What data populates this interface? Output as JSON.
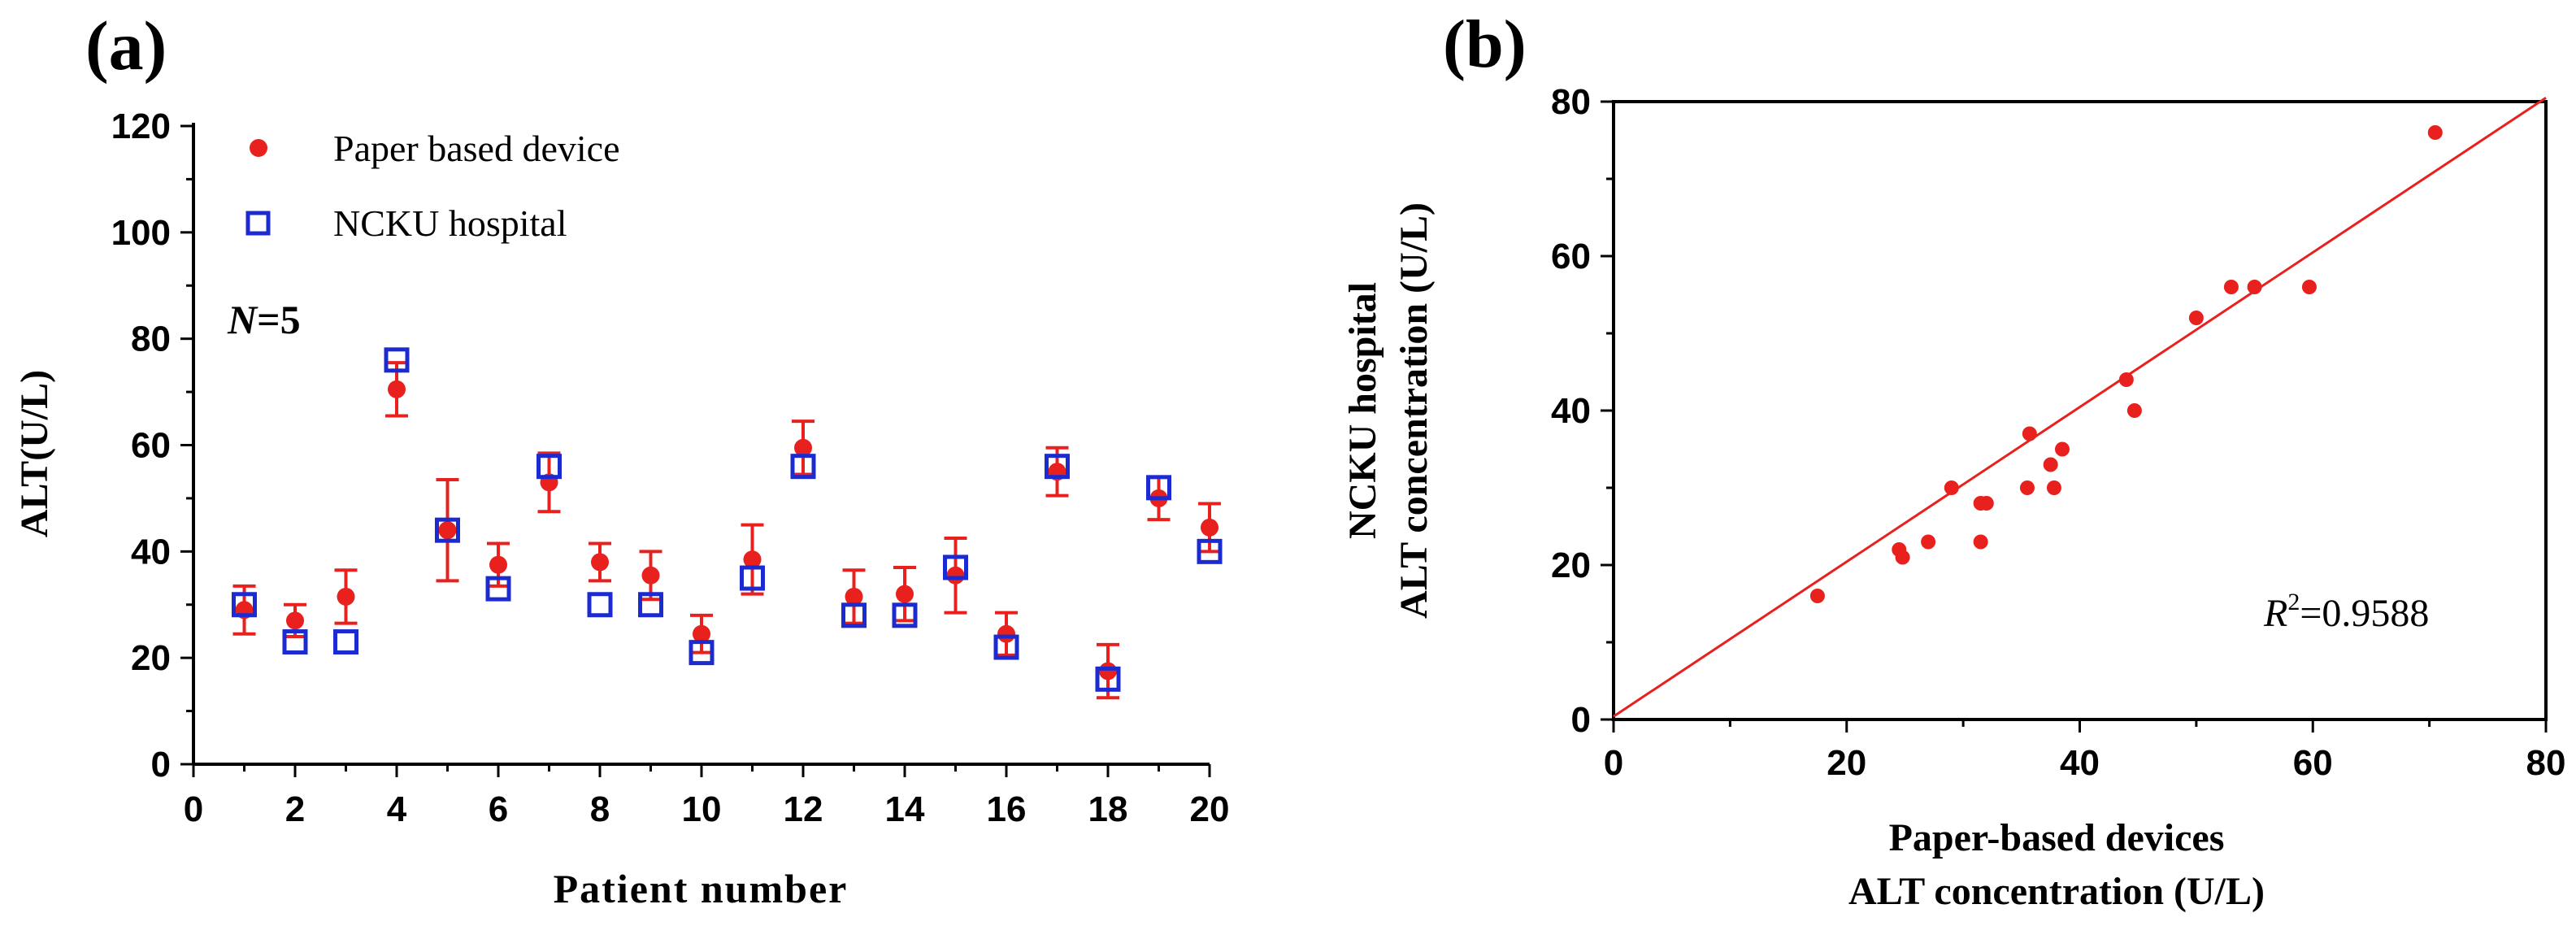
{
  "chart_data": [
    {
      "panel_label": "(a)",
      "type": "scatter",
      "xlabel": "Patient number",
      "ylabel": "ALT(U/L)",
      "xlim": [
        0,
        20
      ],
      "ylim": [
        0,
        120
      ],
      "xticks": [
        0,
        2,
        4,
        6,
        8,
        10,
        12,
        14,
        16,
        18,
        20
      ],
      "yticks": [
        0,
        20,
        40,
        60,
        80,
        100,
        120
      ],
      "grid": false,
      "legend_position": "top-left",
      "annotation": {
        "italic": "N",
        "text": "=5"
      },
      "x": [
        1,
        2,
        3,
        4,
        5,
        6,
        7,
        8,
        9,
        10,
        11,
        12,
        13,
        14,
        15,
        16,
        17,
        18,
        19,
        20
      ],
      "series": [
        {
          "name": "Paper based device",
          "marker": "filled-circle",
          "color": "#e8201e",
          "values": [
            29,
            27,
            31.5,
            70.5,
            44,
            37.5,
            53,
            38,
            35.5,
            24.5,
            38.5,
            59.5,
            31.5,
            32,
            35.5,
            24.5,
            55,
            17.5,
            50,
            44.5
          ],
          "errors": [
            4.5,
            3,
            5,
            5,
            9.5,
            4,
            5.5,
            3.5,
            4.5,
            3.5,
            6.5,
            5,
            5,
            5,
            7,
            4,
            4.5,
            5,
            4,
            4.5
          ]
        },
        {
          "name": "NCKU hospital",
          "marker": "open-square",
          "color": "#1c2bd0",
          "values": [
            30,
            23,
            23,
            76,
            44,
            33,
            56,
            30,
            30,
            21,
            35,
            56,
            28,
            28,
            37,
            22,
            56,
            16,
            52,
            40
          ]
        }
      ]
    },
    {
      "panel_label": "(b)",
      "type": "scatter",
      "xlabel_line1": "Paper-based devices",
      "xlabel_line2": "ALT concentration (U/L)",
      "ylabel_line1": "NCKU hospital",
      "ylabel_line2": "ALT concentration (U/L)",
      "xlim": [
        0,
        80
      ],
      "ylim": [
        0,
        80
      ],
      "xticks": [
        0,
        20,
        40,
        60,
        80
      ],
      "yticks": [
        0,
        20,
        40,
        60,
        80
      ],
      "grid": false,
      "annotation": {
        "italic": "R",
        "sup": "2",
        "text": "=0.9588"
      },
      "color": "#e8201e",
      "points": [
        [
          17.5,
          16
        ],
        [
          24.5,
          22
        ],
        [
          24.8,
          21
        ],
        [
          27,
          23
        ],
        [
          29,
          30
        ],
        [
          31.5,
          28
        ],
        [
          31.5,
          23
        ],
        [
          32,
          28
        ],
        [
          35.5,
          30
        ],
        [
          35.7,
          37
        ],
        [
          37.5,
          33
        ],
        [
          37.8,
          30
        ],
        [
          38.5,
          35
        ],
        [
          44,
          44
        ],
        [
          44.7,
          40
        ],
        [
          50,
          52
        ],
        [
          53,
          56
        ],
        [
          55,
          56
        ],
        [
          59.7,
          56
        ],
        [
          70.5,
          76
        ]
      ],
      "fit_line": [
        [
          0,
          0.4
        ],
        [
          80,
          80.5
        ]
      ]
    }
  ]
}
